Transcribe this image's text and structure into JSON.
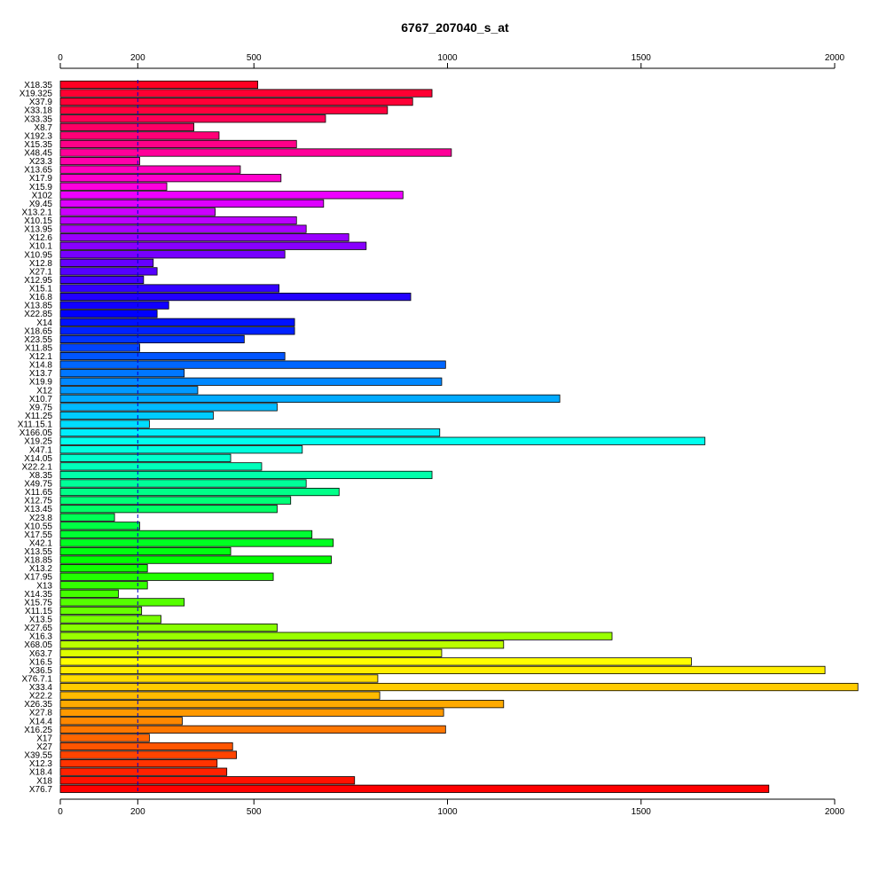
{
  "chart_data": {
    "type": "bar",
    "orientation": "horizontal",
    "title": "6767_207040_s_at",
    "xlabel": "",
    "ylabel": "",
    "xlim": [
      0,
      2060
    ],
    "ticks": [
      0,
      200,
      500,
      1000,
      1500,
      2000
    ],
    "tick_labels": [
      "0",
      "200",
      "500",
      "1000",
      "1500",
      "2000"
    ],
    "reference_line": 200,
    "reference_line_color": "#0000cc",
    "grid": false,
    "legend": "none",
    "categories": [
      "X18.35",
      "X19.325",
      "X37.9",
      "X33.18",
      "X33.35",
      "X8.7",
      "X192.3",
      "X15.35",
      "X48.45",
      "X23.3",
      "X13.65",
      "X17.9",
      "X15.9",
      "X102",
      "X9.45",
      "X13.2.1",
      "X10.15",
      "X13.95",
      "X12.6",
      "X10.1",
      "X10.95",
      "X12.8",
      "X27.1",
      "X12.95",
      "X15.1",
      "X16.8",
      "X13.85",
      "X22.85",
      "X14",
      "X18.65",
      "X23.55",
      "X11.85",
      "X12.1",
      "X14.8",
      "X13.7",
      "X19.9",
      "X12",
      "X10.7",
      "X9.75",
      "X11.25",
      "X11.15.1",
      "X166.05",
      "X19.25",
      "X47.1",
      "X14.05",
      "X22.2.1",
      "X8.35",
      "X49.75",
      "X11.65",
      "X12.75",
      "X13.45",
      "X23.8",
      "X10.55",
      "X17.55",
      "X42.1",
      "X13.55",
      "X18.85",
      "X13.2",
      "X17.95",
      "X13",
      "X14.35",
      "X15.75",
      "X11.15",
      "X13.5",
      "X27.65",
      "X16.3",
      "X68.05",
      "X63.7",
      "X16.5",
      "X36.5",
      "X76.7.1",
      "X33.4",
      "X22.2",
      "X26.35",
      "X27.8",
      "X14.4",
      "X16.25",
      "X17",
      "X27",
      "X39.55",
      "X12.3",
      "X18.4",
      "X18",
      "X76.7"
    ],
    "values": [
      510,
      960,
      910,
      845,
      685,
      345,
      410,
      610,
      1010,
      205,
      465,
      570,
      275,
      885,
      680,
      400,
      610,
      635,
      745,
      790,
      580,
      240,
      250,
      215,
      565,
      905,
      280,
      250,
      605,
      605,
      475,
      205,
      580,
      995,
      320,
      985,
      355,
      1290,
      560,
      395,
      230,
      980,
      1665,
      625,
      440,
      520,
      960,
      635,
      720,
      595,
      560,
      140,
      205,
      650,
      705,
      440,
      700,
      225,
      550,
      225,
      150,
      320,
      210,
      260,
      560,
      1425,
      1145,
      985,
      1630,
      1975,
      820,
      2060,
      825,
      1145,
      990,
      315,
      995,
      230,
      445,
      455,
      405,
      430,
      760,
      1830
    ],
    "colors": [
      "#ff0022",
      "#ff0033",
      "#ff0037",
      "#ff003d",
      "#ff0055",
      "#ff0066",
      "#ff0077",
      "#ff0088",
      "#ff0099",
      "#ff00aa",
      "#ff00bb",
      "#ff00cc",
      "#ff00dd",
      "#ee00ff",
      "#dd00ff",
      "#cc00ff",
      "#bb00ff",
      "#aa00ff",
      "#9900ff",
      "#8800ff",
      "#7700ff",
      "#6600ff",
      "#5500ff",
      "#4400ff",
      "#3300ff",
      "#2200ff",
      "#1100ff",
      "#0000ff",
      "#0011ff",
      "#0022ff",
      "#0033ff",
      "#0044ff",
      "#0055ff",
      "#0066ff",
      "#0077ff",
      "#0088ff",
      "#0099ff",
      "#00aaff",
      "#00bbff",
      "#00ccff",
      "#00ddff",
      "#00eeff",
      "#00ffee",
      "#00ffdd",
      "#00ffcc",
      "#00ffbb",
      "#00ffaa",
      "#00ff99",
      "#00ff88",
      "#00ff77",
      "#00ff66",
      "#00ff55",
      "#00ff44",
      "#00ff33",
      "#00ff22",
      "#00ff11",
      "#00ff00",
      "#11ff00",
      "#22ff00",
      "#33ff00",
      "#44ff00",
      "#55ff00",
      "#66ff00",
      "#77ff00",
      "#88ff00",
      "#99ff00",
      "#bbff00",
      "#ddff00",
      "#ffff00",
      "#ffee00",
      "#ffdd00",
      "#ffcc00",
      "#ffbb00",
      "#ffaa00",
      "#ff9900",
      "#ff8800",
      "#ff7700",
      "#ff6600",
      "#ff5500",
      "#ff4400",
      "#ff3300",
      "#ff2200",
      "#ff1100",
      "#ff0000"
    ]
  }
}
